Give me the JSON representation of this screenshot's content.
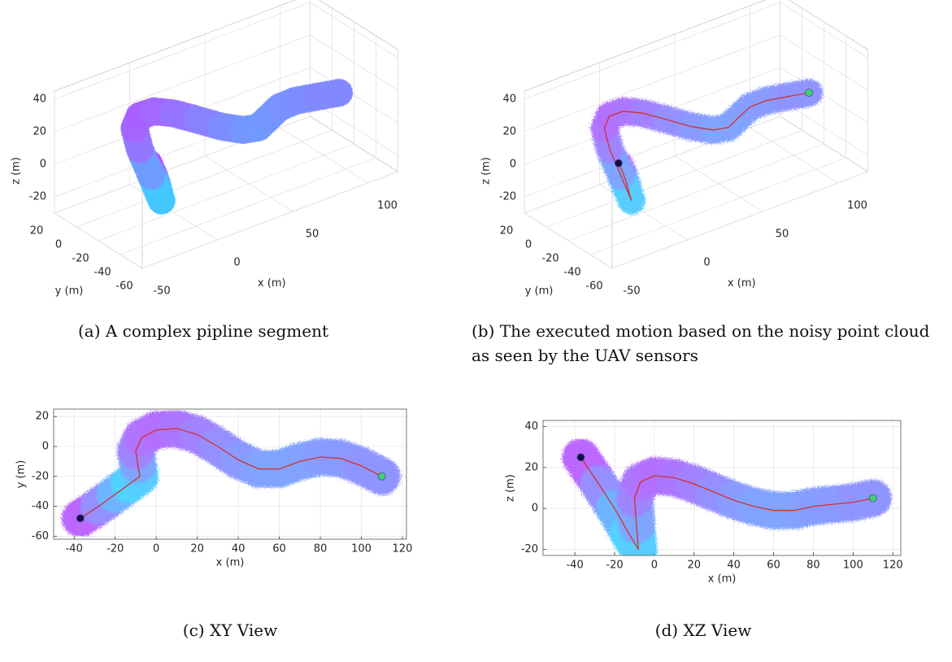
{
  "chart_data": [
    {
      "type": "scatter3d",
      "caption": "(a) A complex pipline segment",
      "xlabel": "x (m)",
      "ylabel": "y (m)",
      "zlabel": "z (m)",
      "xlim": [
        -50,
        120
      ],
      "ylim": [
        -60,
        20
      ],
      "zlim": [
        -30,
        45
      ],
      "xticks": [
        -50,
        0,
        50,
        100
      ],
      "yticks": [
        -60,
        -40,
        -20,
        0,
        20
      ],
      "zticks": [
        -20,
        0,
        20,
        40
      ],
      "clim": [
        -30,
        40
      ],
      "noisy": false,
      "show_path": false,
      "centerline": {
        "x": [
          -37,
          -28,
          -20,
          -13,
          -8,
          -9,
          -10,
          -7,
          0,
          10,
          20,
          30,
          40,
          50,
          60,
          70,
          80,
          90,
          100,
          110
        ],
        "y": [
          -48,
          -40,
          -32,
          -25,
          -20,
          -12,
          -3,
          6,
          11,
          12,
          8,
          0,
          -9,
          -15,
          -15,
          -10,
          -7,
          -8,
          -13,
          -20
        ],
        "z": [
          25,
          12,
          0,
          -12,
          -20,
          -8,
          5,
          13,
          16,
          15,
          12,
          8,
          4,
          1,
          -1,
          -1,
          1,
          2,
          3,
          5
        ]
      }
    },
    {
      "type": "scatter3d",
      "caption": "(b) The executed motion based on the noisy point cloud as seen by the UAV sensors",
      "xlabel": "x (m)",
      "ylabel": "y (m)",
      "zlabel": "z (m)",
      "xlim": [
        -50,
        120
      ],
      "ylim": [
        -60,
        20
      ],
      "zlim": [
        -30,
        45
      ],
      "xticks": [
        -50,
        0,
        50,
        100
      ],
      "yticks": [
        -60,
        -40,
        -20,
        0,
        20
      ],
      "zticks": [
        -20,
        0,
        20,
        40
      ],
      "clim": [
        -30,
        40
      ],
      "noisy": true,
      "show_path": true,
      "path_color": "#d0312d",
      "start": {
        "x": -37,
        "y": -48,
        "z": 25,
        "color": "#10104a"
      },
      "end": {
        "x": 110,
        "y": -20,
        "z": 5,
        "color": "#3fd46a"
      },
      "centerline": {
        "x": [
          -37,
          -28,
          -20,
          -13,
          -8,
          -9,
          -10,
          -7,
          0,
          10,
          20,
          30,
          40,
          50,
          60,
          70,
          80,
          90,
          100,
          110
        ],
        "y": [
          -48,
          -40,
          -32,
          -25,
          -20,
          -12,
          -3,
          6,
          11,
          12,
          8,
          0,
          -9,
          -15,
          -15,
          -10,
          -7,
          -8,
          -13,
          -20
        ],
        "z": [
          25,
          12,
          0,
          -12,
          -20,
          -8,
          5,
          13,
          16,
          15,
          12,
          8,
          4,
          1,
          -1,
          -1,
          1,
          2,
          3,
          5
        ]
      }
    },
    {
      "type": "scatter",
      "caption": "(c) XY View",
      "axes": [
        "x",
        "y"
      ],
      "xlabel": "x (m)",
      "ylabel": "y (m)",
      "xlim": [
        -50,
        122
      ],
      "ylim": [
        -62,
        25
      ],
      "xticks": [
        -40,
        -20,
        0,
        20,
        40,
        60,
        80,
        100,
        120
      ],
      "yticks": [
        -60,
        -40,
        -20,
        0,
        20
      ],
      "grid": true,
      "clim": [
        -30,
        40
      ],
      "noisy": true,
      "show_path": true,
      "path_color": "#d0312d",
      "start": {
        "x": -37,
        "y": -48,
        "z": 25,
        "color": "#10104a"
      },
      "end": {
        "x": 110,
        "y": -20,
        "z": 5,
        "color": "#3fd46a"
      },
      "centerline": {
        "x": [
          -37,
          -28,
          -20,
          -13,
          -8,
          -9,
          -10,
          -7,
          0,
          10,
          20,
          30,
          40,
          50,
          60,
          70,
          80,
          90,
          100,
          110
        ],
        "y": [
          -48,
          -40,
          -32,
          -25,
          -20,
          -12,
          -3,
          6,
          11,
          12,
          8,
          0,
          -9,
          -15,
          -15,
          -10,
          -7,
          -8,
          -13,
          -20
        ],
        "z": [
          25,
          12,
          0,
          -12,
          -20,
          -8,
          5,
          13,
          16,
          15,
          12,
          8,
          4,
          1,
          -1,
          -1,
          1,
          2,
          3,
          5
        ]
      }
    },
    {
      "type": "scatter",
      "caption": "(d) XZ View",
      "axes": [
        "x",
        "z"
      ],
      "xlabel": "x (m)",
      "zlabel": "z (m)",
      "xlim": [
        -56,
        124
      ],
      "zlim": [
        -23,
        43
      ],
      "xticks": [
        -40,
        -20,
        0,
        20,
        40,
        60,
        80,
        100,
        120
      ],
      "zticks": [
        -20,
        0,
        20,
        40
      ],
      "grid": true,
      "clim": [
        -30,
        40
      ],
      "noisy": true,
      "show_path": true,
      "path_color": "#d0312d",
      "start": {
        "x": -37,
        "y": -48,
        "z": 25,
        "color": "#10104a"
      },
      "end": {
        "x": 110,
        "y": -20,
        "z": 5,
        "color": "#3fd46a"
      },
      "centerline": {
        "x": [
          -37,
          -28,
          -20,
          -13,
          -8,
          -9,
          -10,
          -7,
          0,
          10,
          20,
          30,
          40,
          50,
          60,
          70,
          80,
          90,
          100,
          110
        ],
        "y": [
          -48,
          -40,
          -32,
          -25,
          -20,
          -12,
          -3,
          6,
          11,
          12,
          8,
          0,
          -9,
          -15,
          -15,
          -10,
          -7,
          -8,
          -13,
          -20
        ],
        "z": [
          25,
          12,
          0,
          -12,
          -20,
          -8,
          5,
          13,
          16,
          15,
          12,
          8,
          4,
          1,
          -1,
          -1,
          1,
          2,
          3,
          5
        ]
      }
    }
  ]
}
